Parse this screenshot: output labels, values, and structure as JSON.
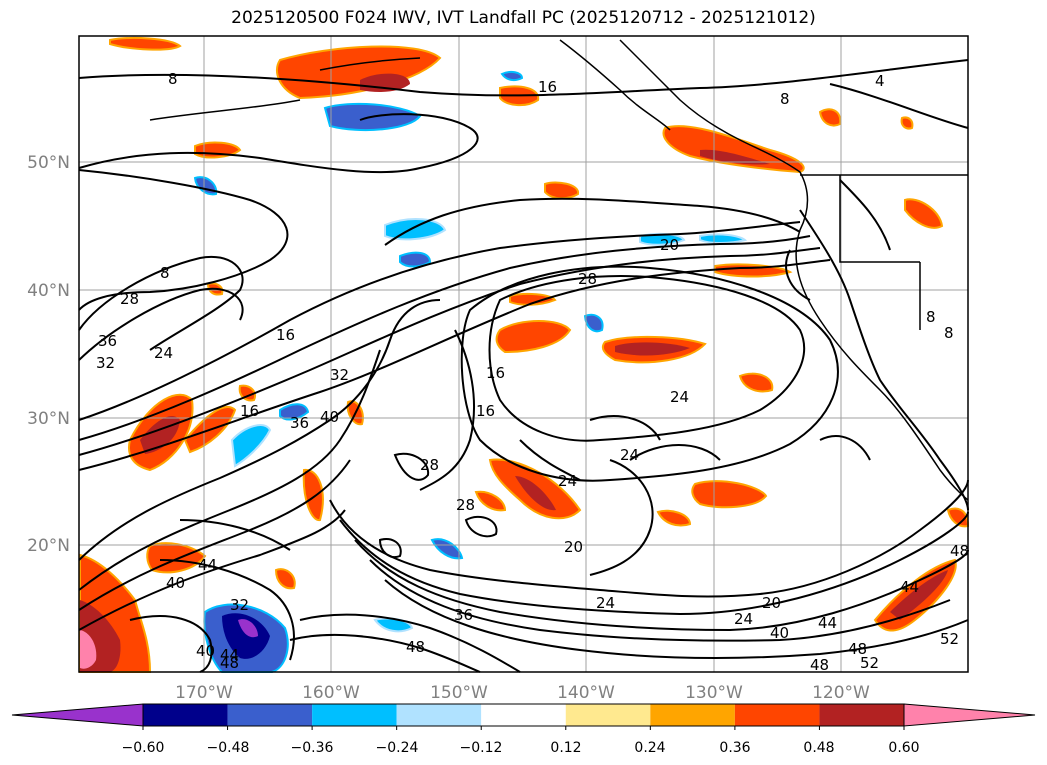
{
  "title": "2025120500 F024 IWV, IVT Landfall PC (2025120712 - 2025121012)",
  "lat_labels": [
    "50°N",
    "40°N",
    "30°N",
    "20°N"
  ],
  "lon_labels": [
    "170°W",
    "160°W",
    "150°W",
    "140°W",
    "130°W",
    "120°W"
  ],
  "colorbar": {
    "ticks": [
      "−0.60",
      "−0.48",
      "−0.36",
      "−0.24",
      "−0.12",
      "0.12",
      "0.24",
      "0.36",
      "0.48",
      "0.60"
    ],
    "colors": [
      "#9932cc",
      "#00008b",
      "#3a5fcd",
      "#00bfff",
      "#b0e2ff",
      "#ffffff",
      "#ffe98f",
      "#ffa500",
      "#ff4500",
      "#b22222",
      "#ff82ab"
    ]
  },
  "contour_labels": [
    "8",
    "8",
    "4",
    "16",
    "8",
    "28",
    "36",
    "32",
    "24",
    "16",
    "20",
    "28",
    "16",
    "36",
    "40",
    "32",
    "16",
    "16",
    "24",
    "24",
    "28",
    "28",
    "24",
    "20",
    "44",
    "40",
    "32",
    "44",
    "40",
    "48",
    "36",
    "48",
    "24",
    "20",
    "24",
    "40",
    "44",
    "48",
    "44",
    "48",
    "52",
    "52",
    "48",
    "8",
    "8"
  ]
}
